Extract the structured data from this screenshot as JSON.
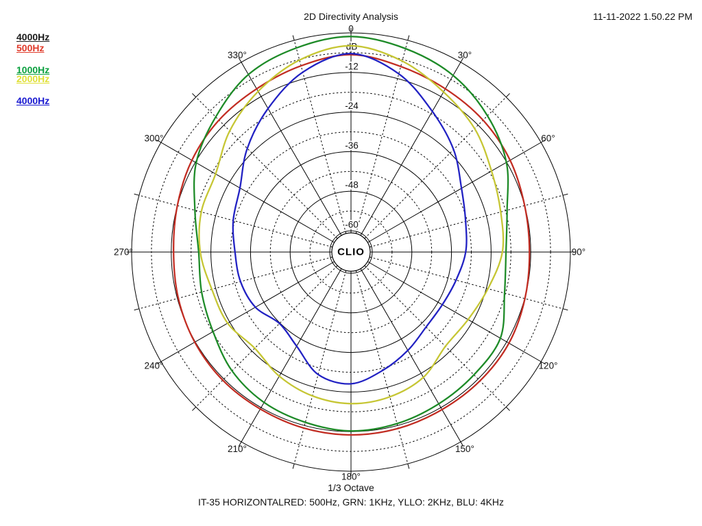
{
  "header": {
    "title": "2D Directivity Analysis",
    "timestamp": "11-11-2022 1.50.22 PM"
  },
  "legend": {
    "items": [
      {
        "label": "4000Hz",
        "color": "#1a1a1a"
      },
      {
        "label": "500Hz",
        "color": "#e03a2a"
      },
      {
        "label": "1000Hz",
        "color": "#0aa03e"
      },
      {
        "label": "2000Hz",
        "color": "#e0e036"
      },
      {
        "label": "4000Hz",
        "color": "#1818d0"
      }
    ]
  },
  "footer": {
    "octave_label": "1/3 Octave",
    "caption": "IT-35 HORIZONTALRED: 500Hz, GRN: 1KHz, YLLO: 2KHz, BLU: 4KHz"
  },
  "chart_data": {
    "type": "line",
    "subtype": "polar-directivity",
    "title": "2D Directivity Analysis",
    "center_label": "CLIO",
    "grid": "on",
    "radial_axis": {
      "unit": "dB",
      "min_db": -60,
      "max_db": 0,
      "ring_step_db": 6,
      "solid_rings_db": [
        0,
        -12,
        -24,
        -36,
        -48,
        -60
      ],
      "dashed_rings_db": [
        -6,
        -18,
        -30,
        -42,
        -54
      ],
      "labels": [
        {
          "text": "dB",
          "db": -6
        },
        {
          "text": "-12",
          "db": -12
        },
        {
          "text": "-24",
          "db": -24
        },
        {
          "text": "-36",
          "db": -36
        },
        {
          "text": "-48",
          "db": -48
        },
        {
          "text": "-60",
          "db": -60
        }
      ]
    },
    "angle_axis": {
      "solid_spoke_step_deg": 30,
      "dashed_spoke_step_deg": 15,
      "labels": [
        {
          "deg": 0,
          "text": "0"
        },
        {
          "deg": 30,
          "text": "30°"
        },
        {
          "deg": 60,
          "text": "60°"
        },
        {
          "deg": 90,
          "text": "90°"
        },
        {
          "deg": 120,
          "text": "120°"
        },
        {
          "deg": 150,
          "text": "150°"
        },
        {
          "deg": 180,
          "text": "180°"
        },
        {
          "deg": 210,
          "text": "210°"
        },
        {
          "deg": 240,
          "text": "240°"
        },
        {
          "deg": 270,
          "text": "270°"
        },
        {
          "deg": 300,
          "text": "300°"
        },
        {
          "deg": 330,
          "text": "330°"
        }
      ]
    },
    "angles_deg": [
      0,
      15,
      30,
      45,
      60,
      75,
      90,
      105,
      120,
      135,
      150,
      165,
      180,
      195,
      210,
      225,
      240,
      255,
      270,
      285,
      300,
      315,
      330,
      345
    ],
    "series": [
      {
        "name": "500Hz",
        "color": "#c22d23",
        "values_db": [
          -6.6,
          -8.2,
          -9.3,
          -9.9,
          -10.8,
          -12.0,
          -12.4,
          -11.9,
          -11.2,
          -11.2,
          -11.3,
          -11.1,
          -11.0,
          -11.2,
          -11.5,
          -11.5,
          -11.8,
          -12.3,
          -12.7,
          -12.0,
          -10.8,
          -9.9,
          -9.3,
          -8.0
        ]
      },
      {
        "name": "1000Hz",
        "color": "#1e8b28",
        "values_db": [
          -1.1,
          -2.6,
          -4.6,
          -8.0,
          -12.1,
          -17.5,
          -19.5,
          -18.3,
          -14.2,
          -13.8,
          -13.3,
          -12.6,
          -12.2,
          -13.0,
          -13.8,
          -15.5,
          -18.2,
          -19.6,
          -20.3,
          -17.5,
          -12.3,
          -8.5,
          -4.3,
          -2.4
        ]
      },
      {
        "name": "2000Hz",
        "color": "#c6c634",
        "values_db": [
          -3.9,
          -6.5,
          -10.4,
          -13.5,
          -17.3,
          -19.5,
          -20.6,
          -23.5,
          -25.5,
          -26.0,
          -22.6,
          -21.0,
          -20.5,
          -21.3,
          -23.0,
          -25.2,
          -23.3,
          -22.8,
          -20.8,
          -19.5,
          -19.1,
          -14.5,
          -10.2,
          -6.2
        ]
      },
      {
        "name": "4000Hz",
        "color": "#2222c3",
        "values_db": [
          -6.3,
          -10.5,
          -17.2,
          -22.5,
          -27.8,
          -30.5,
          -31.7,
          -33.5,
          -34.5,
          -34.3,
          -32.0,
          -29.3,
          -26.5,
          -28.0,
          -33.5,
          -35.8,
          -33.0,
          -31.8,
          -31.3,
          -29.5,
          -27.6,
          -22.0,
          -16.2,
          -10.0
        ]
      }
    ]
  }
}
